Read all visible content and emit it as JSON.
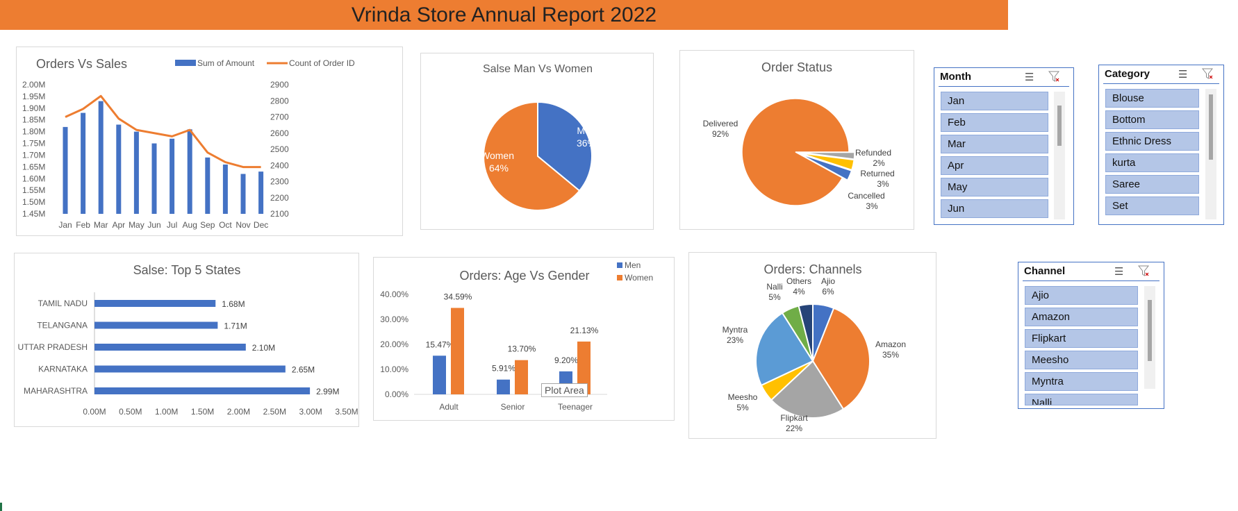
{
  "report_title": "Vrinda Store Annual Report 2022",
  "charts": {
    "orders_sales": {
      "title": "Orders Vs Sales",
      "legend": [
        "Sum of Amount",
        "Count of Order ID"
      ],
      "colors": {
        "bar": "#4472C4",
        "line": "#ED7D31"
      }
    },
    "gender": {
      "title": "Salse Man Vs Women"
    },
    "status": {
      "title": "Order Status"
    },
    "states": {
      "title": "Salse: Top 5 States"
    },
    "age_gender": {
      "title": "Orders: Age Vs Gender",
      "tooltip": "Plot Area"
    },
    "channels": {
      "title": "Orders: Channels"
    }
  },
  "chart_data": [
    {
      "type": "bar",
      "title": "Orders Vs Sales",
      "categories": [
        "Jan",
        "Feb",
        "Mar",
        "Apr",
        "May",
        "Jun",
        "Jul",
        "Aug",
        "Sep",
        "Oct",
        "Nov",
        "Dec"
      ],
      "series": [
        {
          "name": "Sum of Amount",
          "values": [
            1.82,
            1.88,
            1.93,
            1.83,
            1.8,
            1.75,
            1.77,
            1.81,
            1.69,
            1.66,
            1.62,
            1.63
          ],
          "axis": "left",
          "unit": "M"
        },
        {
          "name": "Count of Order ID",
          "type": "line",
          "values": [
            2700,
            2750,
            2830,
            2690,
            2620,
            2600,
            2580,
            2620,
            2480,
            2420,
            2390,
            2390
          ],
          "axis": "right"
        }
      ],
      "ylim_left": [
        1.45,
        2.0
      ],
      "yticks_left": [
        "1.45M",
        "1.50M",
        "1.55M",
        "1.60M",
        "1.65M",
        "1.70M",
        "1.75M",
        "1.80M",
        "1.85M",
        "1.90M",
        "1.95M",
        "2.00M"
      ],
      "ylim_right": [
        2100,
        2900
      ],
      "yticks_right": [
        "2100",
        "2200",
        "2300",
        "2400",
        "2500",
        "2600",
        "2700",
        "2800",
        "2900"
      ],
      "legend_position": "top"
    },
    {
      "type": "pie",
      "title": "Salse Man Vs Women",
      "slices": [
        {
          "label": "Men",
          "value": 36,
          "text": "36%",
          "color": "#4472C4"
        },
        {
          "label": "Women",
          "value": 64,
          "text": "64%",
          "color": "#ED7D31"
        }
      ]
    },
    {
      "type": "pie",
      "title": "Order Status",
      "slices": [
        {
          "label": "Delivered",
          "value": 92,
          "text": "92%",
          "color": "#ED7D31"
        },
        {
          "label": "Refunded",
          "value": 2,
          "text": "2%",
          "color": "#A5A5A5"
        },
        {
          "label": "Returned",
          "value": 3,
          "text": "3%",
          "color": "#FFC000"
        },
        {
          "label": "Cancelled",
          "value": 3,
          "text": "3%",
          "color": "#4472C4"
        }
      ]
    },
    {
      "type": "bar",
      "orientation": "horizontal",
      "title": "Salse: Top 5 States",
      "categories": [
        "TAMIL NADU",
        "TELANGANA",
        "UTTAR PRADESH",
        "KARNATAKA",
        "MAHARASHTRA"
      ],
      "values": [
        1.68,
        1.71,
        2.1,
        2.65,
        2.99
      ],
      "labels": [
        "1.68M",
        "1.71M",
        "2.10M",
        "2.65M",
        "2.99M"
      ],
      "xlim": [
        0,
        3.5
      ],
      "xticks": [
        "0.00M",
        "0.50M",
        "1.00M",
        "1.50M",
        "2.00M",
        "2.50M",
        "3.00M",
        "3.50M"
      ],
      "color": "#4472C4"
    },
    {
      "type": "bar",
      "title": "Orders: Age Vs Gender",
      "categories": [
        "Adult",
        "Senior",
        "Teenager"
      ],
      "series": [
        {
          "name": "Men",
          "values": [
            15.47,
            5.91,
            9.2
          ],
          "labels": [
            "15.47%",
            "5.91%",
            "9.20%"
          ],
          "color": "#4472C4"
        },
        {
          "name": "Women",
          "values": [
            34.59,
            13.7,
            21.13
          ],
          "labels": [
            "34.59%",
            "13.70%",
            "21.13%"
          ],
          "color": "#ED7D31"
        }
      ],
      "ylim": [
        0,
        40
      ],
      "yticks": [
        "0.00%",
        "10.00%",
        "20.00%",
        "30.00%",
        "40.00%"
      ],
      "legend_position": "top-right"
    },
    {
      "type": "pie",
      "title": "Orders: Channels",
      "slices": [
        {
          "label": "Ajio",
          "value": 6,
          "text": "6%",
          "color": "#4472C4"
        },
        {
          "label": "Amazon",
          "value": 35,
          "text": "35%",
          "color": "#ED7D31"
        },
        {
          "label": "Flipkart",
          "value": 22,
          "text": "22%",
          "color": "#A5A5A5"
        },
        {
          "label": "Meesho",
          "value": 5,
          "text": "5%",
          "color": "#FFC000"
        },
        {
          "label": "Myntra",
          "value": 23,
          "text": "23%",
          "color": "#5B9BD5"
        },
        {
          "label": "Nalli",
          "value": 5,
          "text": "5%",
          "color": "#70AD47"
        },
        {
          "label": "Others",
          "value": 4,
          "text": "4%",
          "color": "#264478"
        }
      ]
    }
  ],
  "slicers": {
    "month": {
      "title": "Month",
      "items": [
        "Jan",
        "Feb",
        "Mar",
        "Apr",
        "May",
        "Jun"
      ]
    },
    "category": {
      "title": "Category",
      "items": [
        "Blouse",
        "Bottom",
        "Ethnic Dress",
        "kurta",
        "Saree",
        "Set"
      ]
    },
    "channel": {
      "title": "Channel",
      "items": [
        "Ajio",
        "Amazon",
        "Flipkart",
        "Meesho",
        "Myntra",
        "Nalli"
      ]
    },
    "icons": [
      "multi-select-icon",
      "clear-filter-icon"
    ]
  }
}
